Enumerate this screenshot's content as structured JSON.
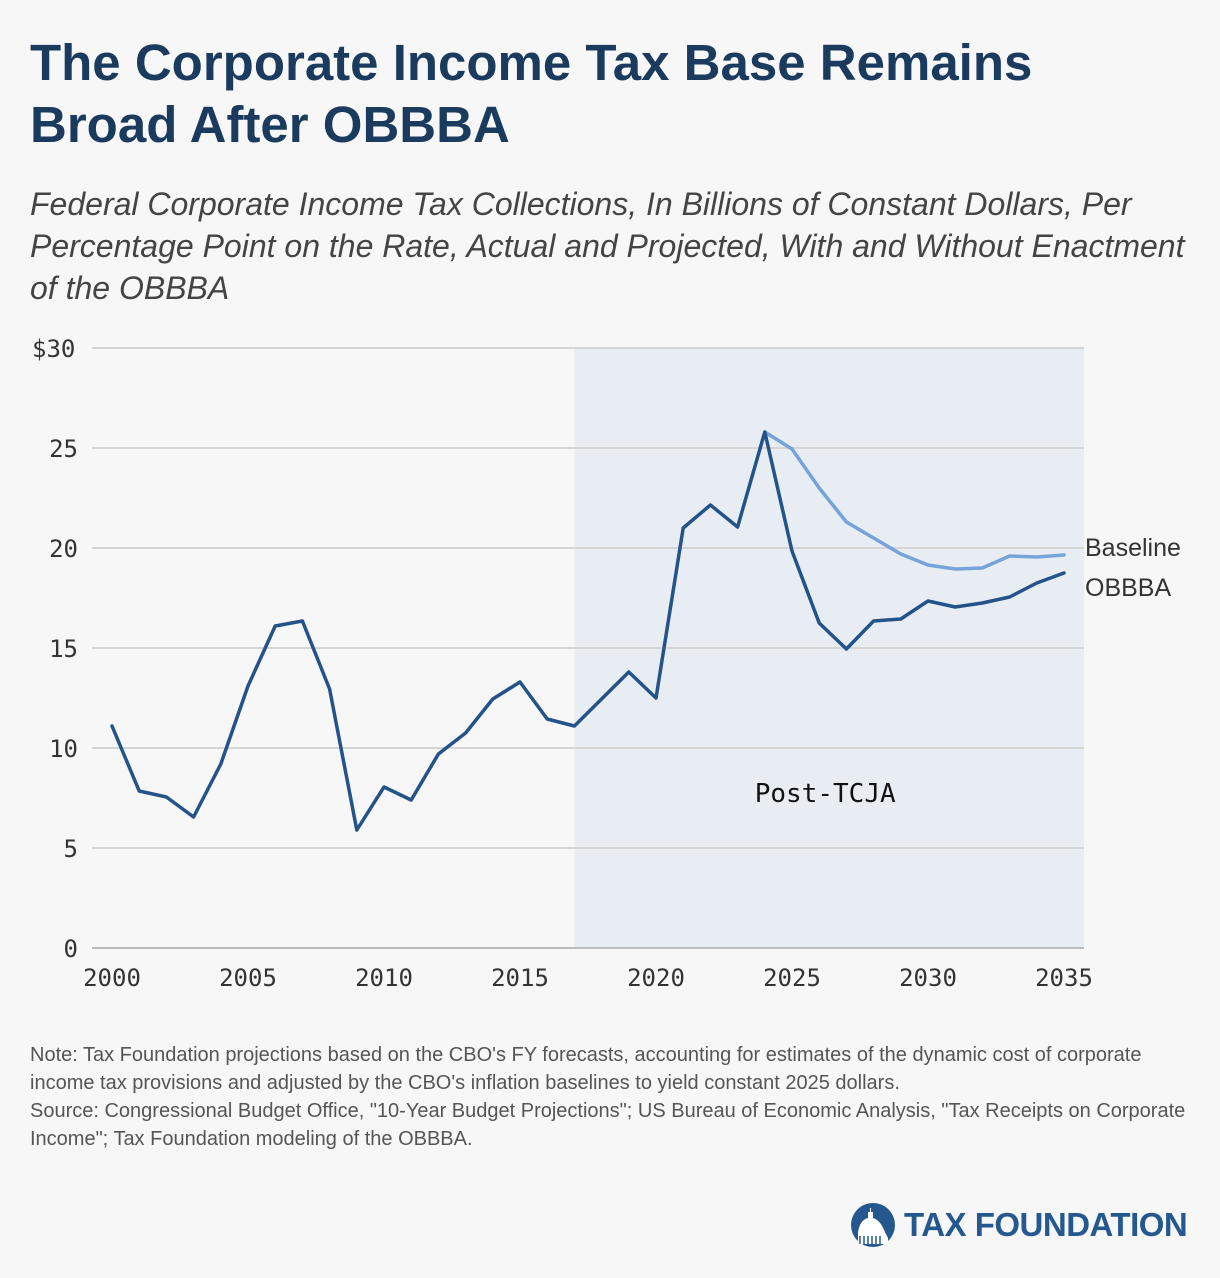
{
  "title": "The Corporate Income Tax Base Remains Broad After OBBBA",
  "subtitle": "Federal Corporate Income Tax Collections, In Billions of Constant Dollars, Per Percentage Point on the Rate, Actual and Projected, With and Without Enactment of the OBBBA",
  "note": "Note: Tax Foundation projections based on the CBO's FY forecasts, accounting for estimates of the dynamic cost of corporate income tax provisions and adjusted by the CBO's inflation baselines to yield constant 2025 dollars.",
  "source": "Source: Congressional Budget Office, \"10-Year Budget Projections\"; US Bureau of Economic Analysis, \"Tax Receipts on Corporate Income\"; Tax Foundation modeling of the OBBBA.",
  "logo": "TAX FOUNDATION",
  "colors": {
    "obbba": "#24538a",
    "baseline": "#76a3d9",
    "shade": "#e8edf4",
    "grid": "#d5d5d5"
  },
  "chart_data": {
    "type": "line",
    "xlim": [
      2000,
      2035
    ],
    "ylim": [
      0,
      30
    ],
    "xticks": [
      2000,
      2005,
      2010,
      2015,
      2020,
      2025,
      2030,
      2035
    ],
    "xtick_labels": [
      "2000",
      "2005",
      "2010",
      "2015",
      "2020",
      "2025",
      "2030",
      "2035"
    ],
    "yticks": [
      0,
      5,
      10,
      15,
      20,
      25,
      30
    ],
    "ytick_labels": [
      "0",
      "5",
      "10",
      "15",
      "20",
      "25",
      "$30"
    ],
    "grid": true,
    "shaded_region": {
      "from": 2017,
      "to": 2035,
      "label": "Post-TCJA"
    },
    "series": [
      {
        "name": "Baseline",
        "x": [
          2024,
          2025,
          2026,
          2027,
          2028,
          2029,
          2030,
          2031,
          2032,
          2033,
          2034,
          2035
        ],
        "values": [
          25.8,
          24.95,
          23.0,
          21.3,
          20.5,
          19.7,
          19.15,
          18.95,
          19.0,
          19.6,
          19.55,
          19.65
        ]
      },
      {
        "name": "OBBBA",
        "x": [
          2000,
          2001,
          2002,
          2003,
          2004,
          2005,
          2006,
          2007,
          2008,
          2009,
          2010,
          2011,
          2012,
          2013,
          2014,
          2015,
          2016,
          2017,
          2018,
          2019,
          2020,
          2021,
          2022,
          2023,
          2024,
          2025,
          2026,
          2027,
          2028,
          2029,
          2030,
          2031,
          2032,
          2033,
          2034,
          2035
        ],
        "values": [
          11.1,
          7.85,
          7.55,
          6.55,
          9.2,
          13.1,
          16.1,
          16.35,
          12.95,
          5.9,
          8.05,
          7.4,
          9.7,
          10.75,
          12.45,
          13.3,
          11.45,
          11.1,
          12.45,
          13.8,
          12.5,
          21.0,
          22.15,
          21.05,
          25.8,
          19.85,
          16.25,
          14.95,
          16.35,
          16.45,
          17.35,
          17.05,
          17.25,
          17.55,
          18.25,
          18.75
        ]
      }
    ]
  }
}
